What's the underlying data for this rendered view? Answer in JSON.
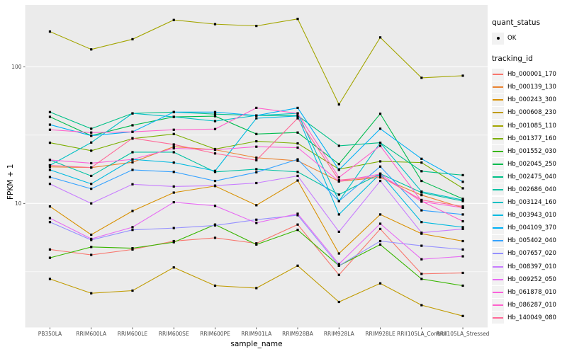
{
  "figure": {
    "background": "#FFFFFF",
    "panel_background": "#EBEBEB",
    "grid_color": "#FFFFFF",
    "axis_text_color": "#4D4D4D",
    "tick_color": "#333333",
    "point_color": "#000000"
  },
  "legend": {
    "quant_status": {
      "title": "quant_status",
      "items": [
        {
          "label": "OK",
          "glyph": "black-point"
        }
      ]
    },
    "tracking_id": {
      "title": "tracking_id"
    }
  },
  "chart_data": {
    "type": "line",
    "title": "",
    "xlabel": "sample_name",
    "ylabel": "FPKM + 1",
    "y_scale": "log10",
    "ylim": [
      1.2,
      280
    ],
    "grid": true,
    "legend_position": "right",
    "y_ticks": [
      {
        "label": "100",
        "value": 100
      },
      {
        "label": "10",
        "value": 10
      }
    ],
    "y_minor_breaks": [
      31.62,
      3.162
    ],
    "categories": [
      "PB350LA",
      "RRIM600LA",
      "RRIM600LE",
      "RRIM600SE",
      "RRIM600PE",
      "RRIM901LA",
      "RRIM928BA",
      "RRIM928LA",
      "RRIM928LE",
      "RRII105LA_Control",
      "RRII105LA_Stressed"
    ],
    "marker": "black-point",
    "series": [
      {
        "name": "Hb_000001_170",
        "color": "#F8766D",
        "values": [
          4.6,
          4.2,
          4.6,
          5.3,
          5.6,
          5.1,
          7.0,
          3.0,
          6.5,
          3.05,
          3.1
        ]
      },
      {
        "name": "Hb_000139_130",
        "color": "#EA8331",
        "values": [
          18.5,
          18.3,
          20.0,
          26.0,
          24.7,
          21.6,
          20.5,
          14.5,
          15.5,
          11.5,
          9.3
        ]
      },
      {
        "name": "Hb_000243_300",
        "color": "#D89000",
        "values": [
          9.5,
          5.9,
          8.8,
          12.0,
          13.4,
          9.7,
          14.7,
          4.3,
          8.3,
          6.0,
          5.3
        ]
      },
      {
        "name": "Hb_000608_230",
        "color": "#C09B00",
        "values": [
          2.8,
          2.2,
          2.3,
          3.4,
          2.5,
          2.4,
          3.5,
          1.9,
          2.6,
          1.8,
          1.5
        ]
      },
      {
        "name": "Hb_001085_110",
        "color": "#A3A500",
        "values": [
          181,
          134,
          159,
          220,
          205,
          199,
          224,
          53,
          164,
          83,
          86
        ]
      },
      {
        "name": "Hb_001377_160",
        "color": "#7CAE00",
        "values": [
          27.8,
          24.3,
          29.8,
          32.2,
          25.0,
          28.5,
          27.5,
          17.8,
          20.3,
          19.9,
          12.9
        ]
      },
      {
        "name": "Hb_001552_030",
        "color": "#39B600",
        "values": [
          4.0,
          4.8,
          4.7,
          5.2,
          7.0,
          5.0,
          6.4,
          3.5,
          5.0,
          2.8,
          2.5
        ]
      },
      {
        "name": "Hb_002045_250",
        "color": "#00BB4E",
        "values": [
          43,
          31.3,
          37.3,
          43,
          43.5,
          32.2,
          33,
          19.4,
          45.3,
          14.6,
          10.8
        ]
      },
      {
        "name": "Hb_002475_040",
        "color": "#00C087",
        "values": [
          46.6,
          35.2,
          45.6,
          46.6,
          45,
          44,
          43.9,
          26.4,
          27.8,
          17.2,
          16.1
        ]
      },
      {
        "name": "Hb_002686_040",
        "color": "#00C1A3",
        "values": [
          20.8,
          15.9,
          23.7,
          23.7,
          17.0,
          17.8,
          17.0,
          11.6,
          16.5,
          12.0,
          10.4
        ]
      },
      {
        "name": "Hb_003124_160",
        "color": "#00BFC4",
        "values": [
          19.0,
          27.9,
          45.6,
          43,
          40,
          44,
          45.6,
          10.4,
          27.8,
          12.2,
          10.6
        ]
      },
      {
        "name": "Hb_003943_010",
        "color": "#00BAE0",
        "values": [
          17.6,
          13.9,
          21.0,
          19.9,
          17.3,
          42,
          43.6,
          8.3,
          16.5,
          7.3,
          6.7
        ]
      },
      {
        "name": "Hb_004109_370",
        "color": "#00B0F6",
        "values": [
          37.7,
          31.3,
          33.4,
          46.6,
          46.6,
          44,
          50,
          17.6,
          35.2,
          21.2,
          14.4
        ]
      },
      {
        "name": "Hb_005402_040",
        "color": "#35A2FF",
        "values": [
          15.6,
          12.8,
          17.6,
          17.0,
          14.6,
          16.9,
          21.0,
          10.4,
          18.6,
          8.9,
          8.3
        ]
      },
      {
        "name": "Hb_007657_020",
        "color": "#9590FF",
        "values": [
          7.3,
          5.4,
          6.4,
          6.6,
          6.9,
          7.6,
          8.2,
          3.5,
          5.3,
          4.9,
          4.6
        ]
      },
      {
        "name": "Hb_008397_010",
        "color": "#C77CFF",
        "values": [
          13.9,
          10.0,
          13.8,
          13.3,
          13.5,
          14.1,
          15.9,
          6.2,
          14.6,
          6.1,
          6.5
        ]
      },
      {
        "name": "Hb_009252_050",
        "color": "#E76BF3",
        "values": [
          7.8,
          5.5,
          6.7,
          10.2,
          9.6,
          7.2,
          8.4,
          3.6,
          7.1,
          3.9,
          4.1
        ]
      },
      {
        "name": "Hb_061878_010",
        "color": "#FA62DB",
        "values": [
          20.8,
          19.7,
          21.0,
          25.3,
          24.7,
          26.0,
          25.6,
          14.5,
          16.4,
          10.3,
          9.3
        ]
      },
      {
        "name": "Hb_086287_010",
        "color": "#FF61CC",
        "values": [
          34.6,
          33,
          33.4,
          34.6,
          35,
          50,
          45.6,
          15.5,
          26.4,
          10.4,
          7.4
        ]
      },
      {
        "name": "Hb_140049_080",
        "color": "#FF6A98",
        "values": [
          19,
          18.3,
          30,
          27,
          23.2,
          20.7,
          42,
          14.8,
          15.8,
          10.6,
          9.5
        ]
      }
    ]
  }
}
